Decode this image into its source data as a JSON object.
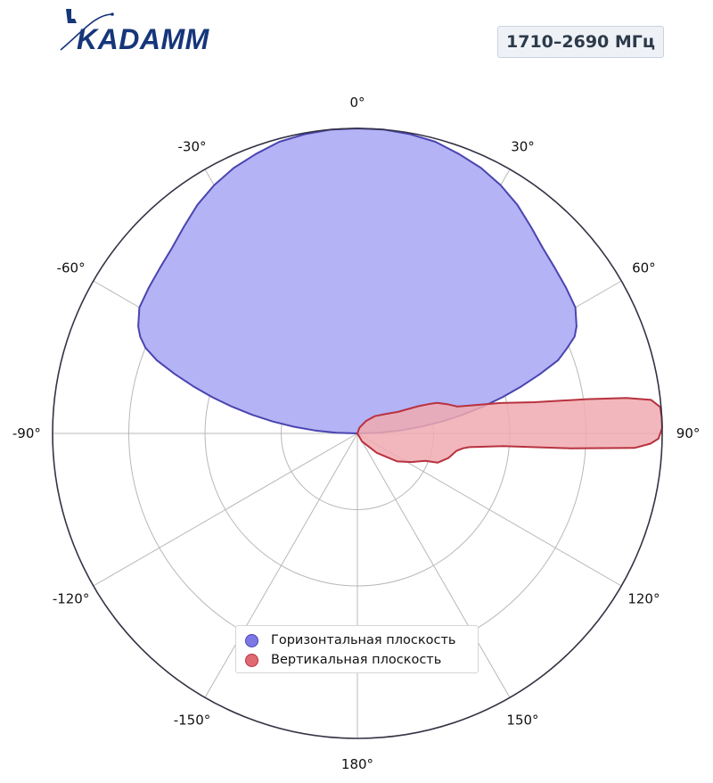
{
  "header": {
    "logo_text": "KADAMM",
    "band_label": "1710–2690 МГц"
  },
  "colors": {
    "horizontal_fill": "#b3b3f5",
    "horizontal_stroke": "#4b44b0",
    "vertical_fill": "#f0aab0",
    "vertical_stroke": "#b8323f",
    "legend_horizontal": "#7b78e6",
    "legend_vertical": "#e06a72",
    "grid": "#b8b8b8",
    "outer_ring": "#333344",
    "logo": "#16367a"
  },
  "chart_data": {
    "type": "polar-area",
    "theta_direction": "clockwise",
    "theta_zero": "top",
    "angle_ticks": [
      "0°",
      "30°",
      "60°",
      "90°",
      "120°",
      "150°",
      "180°",
      "-150°",
      "-120°",
      "-90°",
      "-60°",
      "-30°"
    ],
    "radial_range": [
      0,
      1
    ],
    "radial_grid": [
      0.25,
      0.5,
      0.75,
      1.0
    ],
    "grid": true,
    "legend_position": "bottom-center",
    "series": [
      {
        "name": "Горизонтальная плоскость",
        "key": "horizontal",
        "points": [
          [
            -90,
            0.0
          ],
          [
            -88,
            0.07
          ],
          [
            -86,
            0.14
          ],
          [
            -84,
            0.21
          ],
          [
            -82,
            0.28
          ],
          [
            -80,
            0.35
          ],
          [
            -78,
            0.42
          ],
          [
            -76,
            0.49
          ],
          [
            -74,
            0.56
          ],
          [
            -72,
            0.63
          ],
          [
            -70,
            0.7
          ],
          [
            -68,
            0.75
          ],
          [
            -66,
            0.78
          ],
          [
            -64,
            0.8
          ],
          [
            -60,
            0.826
          ],
          [
            -55,
            0.835
          ],
          [
            -50,
            0.845
          ],
          [
            -45,
            0.86
          ],
          [
            -40,
            0.885
          ],
          [
            -35,
            0.915
          ],
          [
            -30,
            0.94
          ],
          [
            -25,
            0.96
          ],
          [
            -20,
            0.975
          ],
          [
            -15,
            0.99
          ],
          [
            -10,
            0.996
          ],
          [
            -5,
            1.0
          ],
          [
            0,
            1.0
          ],
          [
            5,
            1.0
          ],
          [
            10,
            0.996
          ],
          [
            15,
            0.99
          ],
          [
            20,
            0.975
          ],
          [
            25,
            0.96
          ],
          [
            30,
            0.94
          ],
          [
            35,
            0.915
          ],
          [
            40,
            0.885
          ],
          [
            45,
            0.86
          ],
          [
            50,
            0.845
          ],
          [
            55,
            0.835
          ],
          [
            60,
            0.826
          ],
          [
            64,
            0.8
          ],
          [
            66,
            0.78
          ],
          [
            68,
            0.74
          ],
          [
            70,
            0.7
          ],
          [
            72,
            0.63
          ],
          [
            74,
            0.56
          ],
          [
            76,
            0.49
          ],
          [
            78,
            0.42
          ],
          [
            80,
            0.35
          ],
          [
            82,
            0.28
          ],
          [
            84,
            0.21
          ],
          [
            86,
            0.14
          ],
          [
            88,
            0.07
          ],
          [
            90,
            0.0
          ]
        ]
      },
      {
        "name": "Вертикальная плоскость",
        "key": "vertical",
        "points": [
          [
            0,
            0.0
          ],
          [
            20,
            0.02
          ],
          [
            35,
            0.05
          ],
          [
            45,
            0.08
          ],
          [
            55,
            0.11
          ],
          [
            62,
            0.15
          ],
          [
            66,
            0.22
          ],
          [
            68,
            0.26
          ],
          [
            69,
            0.28
          ],
          [
            72,
            0.31
          ],
          [
            75,
            0.34
          ],
          [
            78,
            0.48
          ],
          [
            80,
            0.59
          ],
          [
            81.5,
            0.76
          ],
          [
            82.5,
            0.89
          ],
          [
            83.5,
            0.97
          ],
          [
            85,
            0.997
          ],
          [
            87,
            1.0
          ],
          [
            89,
            1.0
          ],
          [
            91,
            0.988
          ],
          [
            92,
            0.962
          ],
          [
            93,
            0.91
          ],
          [
            94,
            0.7
          ],
          [
            95,
            0.48
          ],
          [
            97,
            0.37
          ],
          [
            98,
            0.35
          ],
          [
            100,
            0.33
          ],
          [
            105,
            0.31
          ],
          [
            110,
            0.28
          ],
          [
            112,
            0.24
          ],
          [
            118,
            0.2
          ],
          [
            125,
            0.16
          ],
          [
            135,
            0.09
          ],
          [
            150,
            0.03
          ],
          [
            180,
            0.0
          ]
        ]
      }
    ]
  }
}
